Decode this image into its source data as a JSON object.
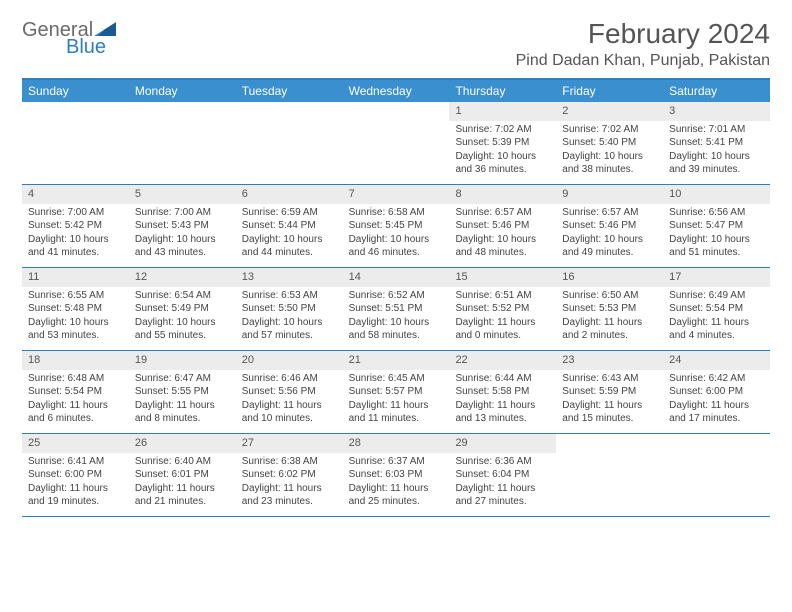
{
  "logo": {
    "word1": "General",
    "word2": "Blue"
  },
  "title": "February 2024",
  "location": "Pind Dadan Khan, Punjab, Pakistan",
  "colors": {
    "accent": "#3a8fce",
    "border": "#2d7fbf",
    "daynum_bg": "#ececec",
    "text": "#444444"
  },
  "weekday_headers": [
    "Sunday",
    "Monday",
    "Tuesday",
    "Wednesday",
    "Thursday",
    "Friday",
    "Saturday"
  ],
  "weeks": [
    [
      {
        "empty": true
      },
      {
        "empty": true
      },
      {
        "empty": true
      },
      {
        "empty": true
      },
      {
        "num": "1",
        "sunrise": "Sunrise: 7:02 AM",
        "sunset": "Sunset: 5:39 PM",
        "daylight": "Daylight: 10 hours and 36 minutes."
      },
      {
        "num": "2",
        "sunrise": "Sunrise: 7:02 AM",
        "sunset": "Sunset: 5:40 PM",
        "daylight": "Daylight: 10 hours and 38 minutes."
      },
      {
        "num": "3",
        "sunrise": "Sunrise: 7:01 AM",
        "sunset": "Sunset: 5:41 PM",
        "daylight": "Daylight: 10 hours and 39 minutes."
      }
    ],
    [
      {
        "num": "4",
        "sunrise": "Sunrise: 7:00 AM",
        "sunset": "Sunset: 5:42 PM",
        "daylight": "Daylight: 10 hours and 41 minutes."
      },
      {
        "num": "5",
        "sunrise": "Sunrise: 7:00 AM",
        "sunset": "Sunset: 5:43 PM",
        "daylight": "Daylight: 10 hours and 43 minutes."
      },
      {
        "num": "6",
        "sunrise": "Sunrise: 6:59 AM",
        "sunset": "Sunset: 5:44 PM",
        "daylight": "Daylight: 10 hours and 44 minutes."
      },
      {
        "num": "7",
        "sunrise": "Sunrise: 6:58 AM",
        "sunset": "Sunset: 5:45 PM",
        "daylight": "Daylight: 10 hours and 46 minutes."
      },
      {
        "num": "8",
        "sunrise": "Sunrise: 6:57 AM",
        "sunset": "Sunset: 5:46 PM",
        "daylight": "Daylight: 10 hours and 48 minutes."
      },
      {
        "num": "9",
        "sunrise": "Sunrise: 6:57 AM",
        "sunset": "Sunset: 5:46 PM",
        "daylight": "Daylight: 10 hours and 49 minutes."
      },
      {
        "num": "10",
        "sunrise": "Sunrise: 6:56 AM",
        "sunset": "Sunset: 5:47 PM",
        "daylight": "Daylight: 10 hours and 51 minutes."
      }
    ],
    [
      {
        "num": "11",
        "sunrise": "Sunrise: 6:55 AM",
        "sunset": "Sunset: 5:48 PM",
        "daylight": "Daylight: 10 hours and 53 minutes."
      },
      {
        "num": "12",
        "sunrise": "Sunrise: 6:54 AM",
        "sunset": "Sunset: 5:49 PM",
        "daylight": "Daylight: 10 hours and 55 minutes."
      },
      {
        "num": "13",
        "sunrise": "Sunrise: 6:53 AM",
        "sunset": "Sunset: 5:50 PM",
        "daylight": "Daylight: 10 hours and 57 minutes."
      },
      {
        "num": "14",
        "sunrise": "Sunrise: 6:52 AM",
        "sunset": "Sunset: 5:51 PM",
        "daylight": "Daylight: 10 hours and 58 minutes."
      },
      {
        "num": "15",
        "sunrise": "Sunrise: 6:51 AM",
        "sunset": "Sunset: 5:52 PM",
        "daylight": "Daylight: 11 hours and 0 minutes."
      },
      {
        "num": "16",
        "sunrise": "Sunrise: 6:50 AM",
        "sunset": "Sunset: 5:53 PM",
        "daylight": "Daylight: 11 hours and 2 minutes."
      },
      {
        "num": "17",
        "sunrise": "Sunrise: 6:49 AM",
        "sunset": "Sunset: 5:54 PM",
        "daylight": "Daylight: 11 hours and 4 minutes."
      }
    ],
    [
      {
        "num": "18",
        "sunrise": "Sunrise: 6:48 AM",
        "sunset": "Sunset: 5:54 PM",
        "daylight": "Daylight: 11 hours and 6 minutes."
      },
      {
        "num": "19",
        "sunrise": "Sunrise: 6:47 AM",
        "sunset": "Sunset: 5:55 PM",
        "daylight": "Daylight: 11 hours and 8 minutes."
      },
      {
        "num": "20",
        "sunrise": "Sunrise: 6:46 AM",
        "sunset": "Sunset: 5:56 PM",
        "daylight": "Daylight: 11 hours and 10 minutes."
      },
      {
        "num": "21",
        "sunrise": "Sunrise: 6:45 AM",
        "sunset": "Sunset: 5:57 PM",
        "daylight": "Daylight: 11 hours and 11 minutes."
      },
      {
        "num": "22",
        "sunrise": "Sunrise: 6:44 AM",
        "sunset": "Sunset: 5:58 PM",
        "daylight": "Daylight: 11 hours and 13 minutes."
      },
      {
        "num": "23",
        "sunrise": "Sunrise: 6:43 AM",
        "sunset": "Sunset: 5:59 PM",
        "daylight": "Daylight: 11 hours and 15 minutes."
      },
      {
        "num": "24",
        "sunrise": "Sunrise: 6:42 AM",
        "sunset": "Sunset: 6:00 PM",
        "daylight": "Daylight: 11 hours and 17 minutes."
      }
    ],
    [
      {
        "num": "25",
        "sunrise": "Sunrise: 6:41 AM",
        "sunset": "Sunset: 6:00 PM",
        "daylight": "Daylight: 11 hours and 19 minutes."
      },
      {
        "num": "26",
        "sunrise": "Sunrise: 6:40 AM",
        "sunset": "Sunset: 6:01 PM",
        "daylight": "Daylight: 11 hours and 21 minutes."
      },
      {
        "num": "27",
        "sunrise": "Sunrise: 6:38 AM",
        "sunset": "Sunset: 6:02 PM",
        "daylight": "Daylight: 11 hours and 23 minutes."
      },
      {
        "num": "28",
        "sunrise": "Sunrise: 6:37 AM",
        "sunset": "Sunset: 6:03 PM",
        "daylight": "Daylight: 11 hours and 25 minutes."
      },
      {
        "num": "29",
        "sunrise": "Sunrise: 6:36 AM",
        "sunset": "Sunset: 6:04 PM",
        "daylight": "Daylight: 11 hours and 27 minutes."
      },
      {
        "empty": true
      },
      {
        "empty": true
      }
    ]
  ]
}
